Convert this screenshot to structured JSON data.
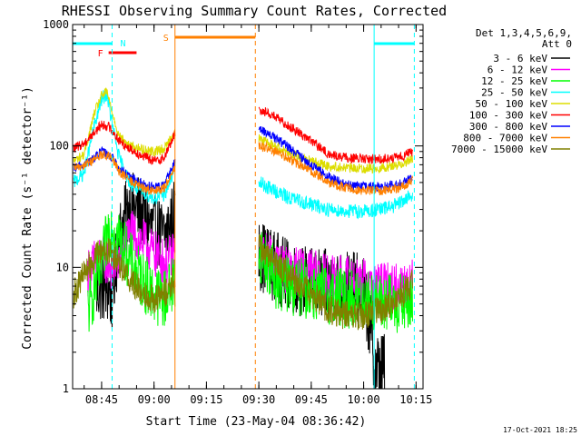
{
  "chart_data": {
    "type": "line",
    "title": "RHESSI Observing Summary Count Rates, Corrected",
    "xlabel": "Start Time (23-May-04 08:36:42)",
    "ylabel": "Corrected Count Rate (s⁻¹ detector⁻¹)",
    "ylim": [
      1,
      1000
    ],
    "yscale": "log",
    "xlim": [
      "08:36:42",
      "10:17:00"
    ],
    "x_ticks": [
      "08:45",
      "09:00",
      "09:15",
      "09:30",
      "09:45",
      "10:00",
      "10:15"
    ],
    "y_ticks": [
      "1",
      "10",
      "100",
      "1000"
    ],
    "legend_header": "Det 1,3,4,5,6,9,",
    "legend_att": "Att 0",
    "legend_position": "right",
    "footer_date": "17-Oct-2021 18:25",
    "annotations": {
      "night": [
        {
          "start": "08:36:42",
          "end": "08:48:00",
          "color": "#00ffff"
        },
        {
          "start": "10:03:00",
          "end": "10:14:30",
          "color": "#00ffff"
        }
      ],
      "night_label": "N",
      "flare": {
        "start": "08:47:00",
        "end": "08:55:00",
        "label": "F",
        "color": "#ff0000"
      },
      "saa": {
        "start": "09:06:00",
        "end": "09:29:00",
        "label": "S",
        "color": "#ff8000"
      },
      "vertical_lines": [
        {
          "time": "08:48:00",
          "color": "#00ffff",
          "style": "dashed"
        },
        {
          "time": "09:06:00",
          "color": "#ff8000",
          "style": "solid"
        },
        {
          "time": "09:29:00",
          "color": "#ff8000",
          "style": "dashed"
        },
        {
          "time": "10:03:00",
          "color": "#00ffff",
          "style": "solid"
        },
        {
          "time": "10:14:30",
          "color": "#00ffff",
          "style": "dashed"
        }
      ]
    },
    "series": [
      {
        "name": "3 - 6 keV",
        "color": "#000000",
        "noise": 0.3,
        "points": [
          [
            "08:37:00",
            null
          ],
          [
            "08:42:00",
            null
          ],
          [
            "08:43:30",
            6.5
          ],
          [
            "08:45:00",
            7
          ],
          [
            "08:47:00",
            6.5
          ],
          [
            "08:48:00",
            5.5
          ],
          [
            "08:50:00",
            18
          ],
          [
            "08:53:00",
            32
          ],
          [
            "08:56:00",
            29
          ],
          [
            "09:00:00",
            20
          ],
          [
            "09:03:00",
            18
          ],
          [
            "09:05:00",
            24
          ],
          [
            "09:06:00",
            28
          ],
          [
            "09:30:00",
            13
          ],
          [
            "09:35:00",
            10
          ],
          [
            "09:40:00",
            8
          ],
          [
            "09:45:00",
            7.5
          ],
          [
            "09:50:00",
            7
          ],
          [
            "09:55:00",
            7
          ],
          [
            "10:00:00",
            6.5
          ],
          [
            "10:02:00",
            3
          ],
          [
            "10:03:00",
            1.5
          ],
          [
            "10:06:00",
            1.5
          ]
        ]
      },
      {
        "name": "6 - 12 keV",
        "color": "#ff00ff",
        "noise": 0.2,
        "points": [
          [
            "08:41:00",
            9
          ],
          [
            "08:43:00",
            11
          ],
          [
            "08:45:00",
            12
          ],
          [
            "08:47:00",
            11
          ],
          [
            "08:48:00",
            10
          ],
          [
            "08:50:00",
            12
          ],
          [
            "08:53:00",
            19
          ],
          [
            "08:56:00",
            17
          ],
          [
            "09:00:00",
            13
          ],
          [
            "09:03:00",
            11
          ],
          [
            "09:05:00",
            12
          ],
          [
            "09:06:00",
            14
          ],
          [
            "09:30:00",
            13
          ],
          [
            "09:33:00",
            12
          ],
          [
            "09:38:00",
            9.5
          ],
          [
            "09:45:00",
            9
          ],
          [
            "09:50:00",
            8
          ],
          [
            "09:55:00",
            8
          ],
          [
            "10:00:00",
            7.5
          ],
          [
            "10:05:00",
            7
          ],
          [
            "10:10:00",
            7
          ],
          [
            "10:14:00",
            7.5
          ]
        ]
      },
      {
        "name": "12 - 25 keV",
        "color": "#00ff00",
        "noise": 0.25,
        "points": [
          [
            "08:41:00",
            4.5
          ],
          [
            "08:42:00",
            5
          ],
          [
            "08:43:00",
            7
          ],
          [
            "08:45:00",
            10
          ],
          [
            "08:47:00",
            21
          ],
          [
            "08:48:00",
            22
          ],
          [
            "08:50:00",
            18
          ],
          [
            "08:52:00",
            13
          ],
          [
            "08:55:00",
            9
          ],
          [
            "09:00:00",
            6
          ],
          [
            "09:03:00",
            5.5
          ],
          [
            "09:05:00",
            7
          ],
          [
            "09:06:00",
            8
          ],
          [
            "09:30:00",
            14
          ],
          [
            "09:35:00",
            8
          ],
          [
            "09:40:00",
            7
          ],
          [
            "09:45:00",
            6.5
          ],
          [
            "09:50:00",
            6
          ],
          [
            "09:55:00",
            5.5
          ],
          [
            "10:00:00",
            5.5
          ],
          [
            "10:05:00",
            5
          ],
          [
            "10:10:00",
            5
          ],
          [
            "10:14:00",
            5
          ]
        ]
      },
      {
        "name": "25 - 50 keV",
        "color": "#00ffff",
        "noise": 0.06,
        "points": [
          [
            "08:37:00",
            50
          ],
          [
            "08:40:00",
            60
          ],
          [
            "08:43:00",
            150
          ],
          [
            "08:45:00",
            240
          ],
          [
            "08:46:30",
            270
          ],
          [
            "08:48:00",
            150
          ],
          [
            "08:50:00",
            80
          ],
          [
            "08:53:00",
            50
          ],
          [
            "08:56:00",
            43
          ],
          [
            "09:00:00",
            37
          ],
          [
            "09:03:00",
            40
          ],
          [
            "09:05:00",
            55
          ],
          [
            "09:06:00",
            65
          ],
          [
            "09:30:00",
            50
          ],
          [
            "09:33:00",
            45
          ],
          [
            "09:38:00",
            38
          ],
          [
            "09:45:00",
            33
          ],
          [
            "09:50:00",
            30
          ],
          [
            "09:55:00",
            29
          ],
          [
            "10:00:00",
            29
          ],
          [
            "10:05:00",
            30
          ],
          [
            "10:10:00",
            33
          ],
          [
            "10:14:00",
            40
          ]
        ]
      },
      {
        "name": "50 - 100 keV",
        "color": "#dddd00",
        "noise": 0.04,
        "points": [
          [
            "08:37:00",
            75
          ],
          [
            "08:40:00",
            85
          ],
          [
            "08:43:00",
            190
          ],
          [
            "08:45:00",
            260
          ],
          [
            "08:46:30",
            280
          ],
          [
            "08:48:00",
            190
          ],
          [
            "08:50:00",
            120
          ],
          [
            "08:53:00",
            100
          ],
          [
            "08:56:00",
            95
          ],
          [
            "09:00:00",
            90
          ],
          [
            "09:03:00",
            95
          ],
          [
            "09:05:00",
            120
          ],
          [
            "09:06:00",
            130
          ],
          [
            "09:30:00",
            115
          ],
          [
            "09:33:00",
            105
          ],
          [
            "09:38:00",
            90
          ],
          [
            "09:45:00",
            75
          ],
          [
            "09:50:00",
            68
          ],
          [
            "09:55:00",
            66
          ],
          [
            "10:00:00",
            65
          ],
          [
            "10:05:00",
            66
          ],
          [
            "10:10:00",
            70
          ],
          [
            "10:14:00",
            78
          ]
        ]
      },
      {
        "name": "100 - 300 keV",
        "color": "#ff0000",
        "noise": 0.04,
        "points": [
          [
            "08:37:00",
            95
          ],
          [
            "08:40:00",
            105
          ],
          [
            "08:43:00",
            130
          ],
          [
            "08:45:00",
            150
          ],
          [
            "08:47:00",
            145
          ],
          [
            "08:48:00",
            135
          ],
          [
            "08:50:00",
            110
          ],
          [
            "08:53:00",
            95
          ],
          [
            "08:56:00",
            85
          ],
          [
            "09:00:00",
            75
          ],
          [
            "09:03:00",
            80
          ],
          [
            "09:05:00",
            110
          ],
          [
            "09:06:00",
            125
          ],
          [
            "09:30:00",
            200
          ],
          [
            "09:33:00",
            185
          ],
          [
            "09:38:00",
            150
          ],
          [
            "09:45:00",
            110
          ],
          [
            "09:50:00",
            85
          ],
          [
            "09:55:00",
            80
          ],
          [
            "10:00:00",
            78
          ],
          [
            "10:05:00",
            78
          ],
          [
            "10:10:00",
            80
          ],
          [
            "10:14:00",
            90
          ]
        ]
      },
      {
        "name": "300 - 800 keV",
        "color": "#0000ff",
        "noise": 0.04,
        "points": [
          [
            "08:37:00",
            65
          ],
          [
            "08:40:00",
            70
          ],
          [
            "08:43:00",
            80
          ],
          [
            "08:45:00",
            90
          ],
          [
            "08:47:00",
            85
          ],
          [
            "08:48:00",
            80
          ],
          [
            "08:50:00",
            65
          ],
          [
            "08:53:00",
            55
          ],
          [
            "08:56:00",
            50
          ],
          [
            "09:00:00",
            45
          ],
          [
            "09:03:00",
            48
          ],
          [
            "09:05:00",
            65
          ],
          [
            "09:06:00",
            72
          ],
          [
            "09:30:00",
            140
          ],
          [
            "09:33:00",
            125
          ],
          [
            "09:38:00",
            100
          ],
          [
            "09:45:00",
            70
          ],
          [
            "09:50:00",
            55
          ],
          [
            "09:55:00",
            48
          ],
          [
            "10:00:00",
            46
          ],
          [
            "10:05:00",
            46
          ],
          [
            "10:10:00",
            48
          ],
          [
            "10:14:00",
            55
          ]
        ]
      },
      {
        "name": "800 - 7000 keV",
        "color": "#ff8000",
        "noise": 0.04,
        "points": [
          [
            "08:37:00",
            65
          ],
          [
            "08:40:00",
            70
          ],
          [
            "08:43:00",
            78
          ],
          [
            "08:45:00",
            85
          ],
          [
            "08:47:00",
            82
          ],
          [
            "08:48:00",
            78
          ],
          [
            "08:50:00",
            62
          ],
          [
            "08:53:00",
            52
          ],
          [
            "08:56:00",
            46
          ],
          [
            "09:00:00",
            42
          ],
          [
            "09:03:00",
            45
          ],
          [
            "09:05:00",
            60
          ],
          [
            "09:06:00",
            68
          ],
          [
            "09:30:00",
            100
          ],
          [
            "09:33:00",
            95
          ],
          [
            "09:38:00",
            80
          ],
          [
            "09:45:00",
            62
          ],
          [
            "09:50:00",
            50
          ],
          [
            "09:55:00",
            45
          ],
          [
            "10:00:00",
            43
          ],
          [
            "10:05:00",
            43
          ],
          [
            "10:10:00",
            45
          ],
          [
            "10:14:00",
            52
          ]
        ]
      },
      {
        "name": "7000 - 15000 keV",
        "color": "#808000",
        "noise": 0.12,
        "points": [
          [
            "08:37:00",
            6
          ],
          [
            "08:40:00",
            9
          ],
          [
            "08:43:00",
            12
          ],
          [
            "08:45:00",
            14
          ],
          [
            "08:47:00",
            13.5
          ],
          [
            "08:48:00",
            13
          ],
          [
            "08:50:00",
            11
          ],
          [
            "08:53:00",
            8
          ],
          [
            "08:56:00",
            6.5
          ],
          [
            "09:00:00",
            5.5
          ],
          [
            "09:03:00",
            6
          ],
          [
            "09:05:00",
            7.5
          ],
          [
            "09:06:00",
            8
          ],
          [
            "09:30:00",
            15
          ],
          [
            "09:33:00",
            12
          ],
          [
            "09:38:00",
            9
          ],
          [
            "09:45:00",
            6
          ],
          [
            "09:50:00",
            4.5
          ],
          [
            "09:55:00",
            4
          ],
          [
            "10:00:00",
            4
          ],
          [
            "10:05:00",
            4.5
          ],
          [
            "10:10:00",
            5.5
          ],
          [
            "10:14:00",
            7.5
          ]
        ]
      }
    ]
  }
}
